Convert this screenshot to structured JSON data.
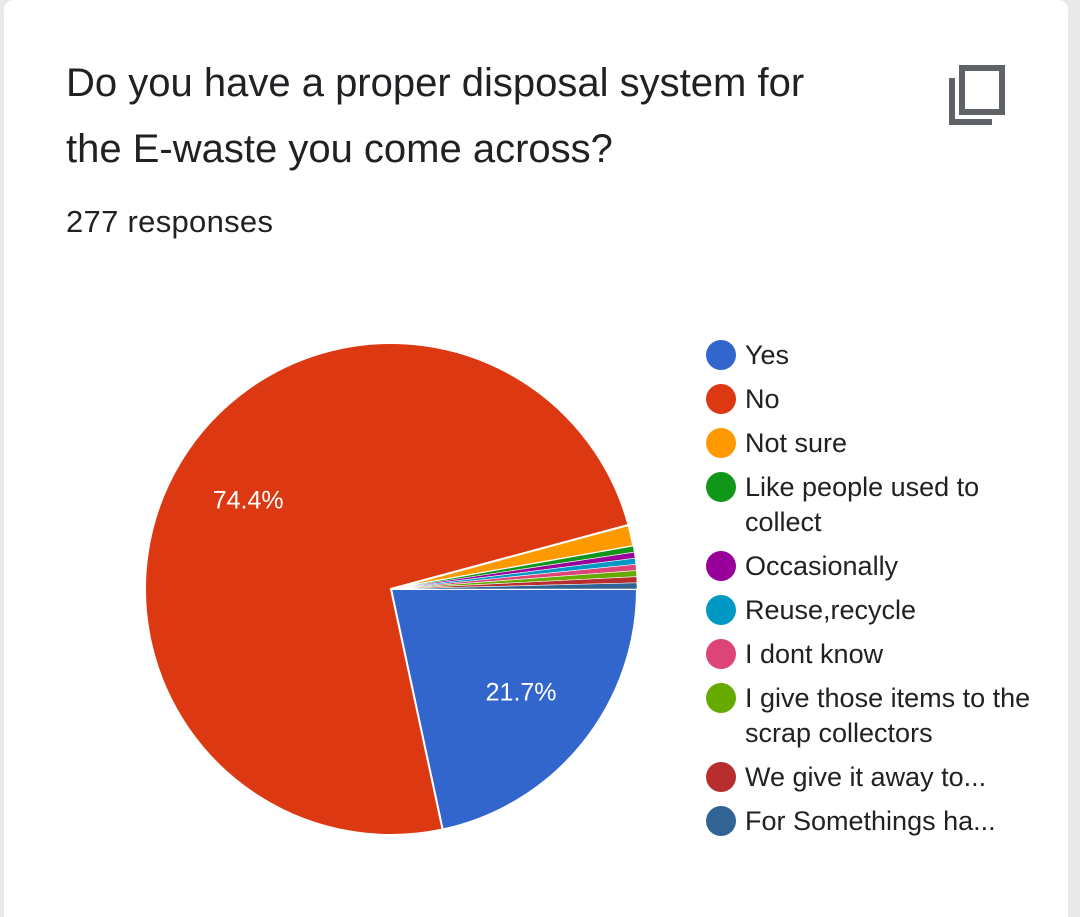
{
  "card": {
    "title": "Do you have a proper disposal system for the E-waste you come across?",
    "responses_text": "277 responses",
    "copy_icon": "copy-icon"
  },
  "chart_data": {
    "type": "pie",
    "categories": [
      "Yes",
      "No",
      "Not sure",
      "Like people used to collect",
      "Occasionally",
      "Reuse,recycle",
      "I dont know",
      "I give those items to the scrap collectors",
      "We give it away to...",
      "For Somethings ha..."
    ],
    "values": [
      21.7,
      74.4,
      1.4,
      0.4,
      0.4,
      0.4,
      0.4,
      0.4,
      0.4,
      0.4
    ],
    "colors": [
      "#3366cc",
      "#dc3912",
      "#ff9900",
      "#109618",
      "#990099",
      "#0099c6",
      "#dd4477",
      "#66aa00",
      "#b82e2e",
      "#316395"
    ],
    "data_labels": [
      "21.7%",
      "74.4%",
      "",
      "",
      "",
      "",
      "",
      "",
      "",
      ""
    ],
    "legend_position": "right"
  }
}
